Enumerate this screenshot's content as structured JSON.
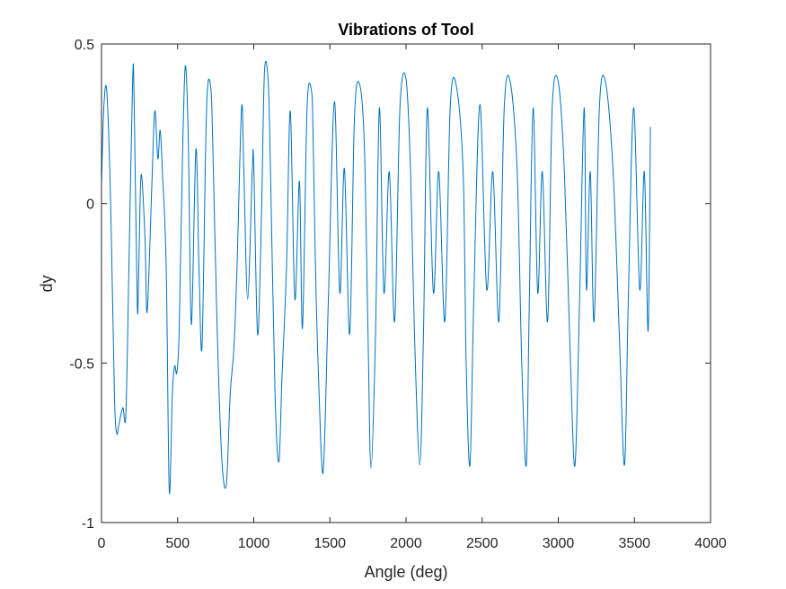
{
  "chart_data": {
    "type": "line",
    "title": "Vibrations of Tool",
    "xlabel": "Angle (deg)",
    "ylabel": "dy",
    "xlim": [
      0,
      4000
    ],
    "ylim": [
      -1,
      0.5
    ],
    "xticks": [
      0,
      500,
      1000,
      1500,
      2000,
      2500,
      3000,
      3500,
      4000
    ],
    "xtick_labels": [
      "0",
      "500",
      "1000",
      "1500",
      "2000",
      "2500",
      "3000",
      "3500",
      "4000"
    ],
    "yticks": [
      -1,
      -0.5,
      0,
      0.5
    ],
    "ytick_labels": [
      "-1",
      "-0.5",
      "0",
      "0.5"
    ],
    "grid": false,
    "line_color": "#0072BD",
    "axes_color": "#262626",
    "series": [
      {
        "x": [
          0,
          15,
          35,
          60,
          85,
          100,
          115,
          140,
          160,
          180,
          205,
          215,
          235,
          245,
          260,
          285,
          300,
          330,
          350,
          370,
          385,
          400,
          425,
          445,
          465,
          480,
          495,
          510,
          530,
          550,
          570,
          590,
          620,
          640,
          660,
          685,
          700,
          720,
          730,
          760,
          790,
          820,
          845,
          870,
          890,
          920,
          935,
          960,
          990,
          1000,
          1025,
          1050,
          1070,
          1095,
          1110,
          1140,
          1165,
          1185,
          1215,
          1240,
          1270,
          1300,
          1320,
          1350,
          1380,
          1390,
          1410,
          1440,
          1460,
          1490,
          1530,
          1565,
          1595,
          1630,
          1660,
          1690,
          1725,
          1750,
          1770,
          1800,
          1825,
          1855,
          1890,
          1925,
          1960,
          2000,
          2030,
          2055,
          2090,
          2115,
          2140,
          2180,
          2215,
          2255,
          2290,
          2330,
          2375,
          2395,
          2420,
          2445,
          2485,
          2530,
          2570,
          2610,
          2645,
          2685,
          2730,
          2760,
          2790,
          2810,
          2835,
          2865,
          2895,
          2930,
          2960,
          3000,
          3040,
          3080,
          3110,
          3140,
          3170,
          3185,
          3210,
          3235,
          3270,
          3310,
          3360,
          3400,
          3435,
          3460,
          3495,
          3535,
          3565,
          3590,
          3605
        ],
        "y": [
          0.06,
          0.3,
          0.35,
          0.0,
          -0.6,
          -0.72,
          -0.69,
          -0.64,
          -0.66,
          -0.2,
          0.4,
          0.3,
          -0.32,
          -0.2,
          0.09,
          -0.1,
          -0.34,
          0.05,
          0.29,
          0.14,
          0.23,
          0.1,
          -0.2,
          -0.9,
          -0.6,
          -0.51,
          -0.53,
          -0.4,
          0.1,
          0.43,
          0.2,
          -0.38,
          0.17,
          -0.2,
          -0.45,
          0.2,
          0.38,
          0.35,
          0.2,
          -0.4,
          -0.8,
          -0.88,
          -0.6,
          -0.45,
          -0.2,
          0.3,
          0.1,
          -0.3,
          0.1,
          0.12,
          -0.41,
          -0.05,
          0.41,
          0.38,
          0.1,
          -0.6,
          -0.81,
          -0.55,
          -0.2,
          0.29,
          -0.3,
          0.07,
          -0.39,
          0.3,
          0.35,
          0.2,
          -0.3,
          -0.75,
          -0.81,
          -0.3,
          0.32,
          -0.28,
          0.11,
          -0.41,
          0.25,
          0.38,
          0.2,
          -0.4,
          -0.83,
          -0.4,
          0.3,
          -0.28,
          0.1,
          -0.37,
          0.3,
          0.39,
          0.1,
          -0.4,
          -0.82,
          -0.4,
          0.3,
          -0.28,
          0.1,
          -0.37,
          0.3,
          0.37,
          0.1,
          -0.5,
          -0.82,
          -0.3,
          0.31,
          -0.27,
          0.1,
          -0.37,
          0.3,
          0.38,
          0.1,
          -0.5,
          -0.82,
          -0.3,
          0.3,
          -0.28,
          0.1,
          -0.37,
          0.3,
          0.38,
          0.1,
          -0.5,
          -0.82,
          -0.3,
          0.3,
          -0.27,
          0.1,
          -0.37,
          0.3,
          0.38,
          0.1,
          -0.4,
          -0.82,
          -0.3,
          0.3,
          -0.27,
          0.1,
          -0.4,
          0.24
        ]
      }
    ]
  }
}
